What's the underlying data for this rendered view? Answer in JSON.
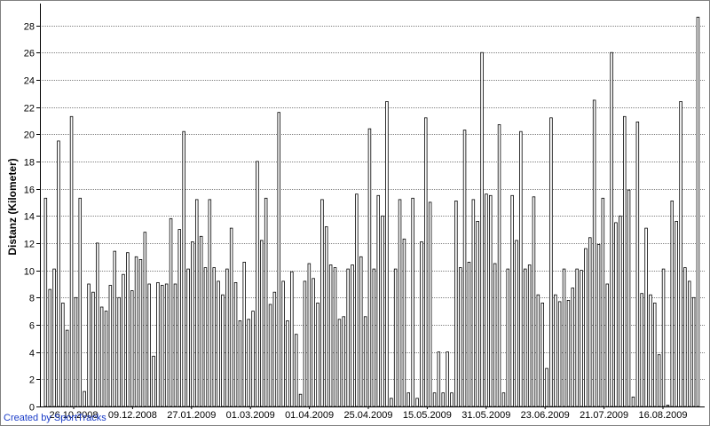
{
  "chart_data": {
    "type": "bar",
    "ylabel": "Distanz (Kilometer)",
    "ylim": [
      0,
      29.6
    ],
    "yticks": [
      0,
      2,
      4,
      6,
      8,
      10,
      12,
      14,
      16,
      18,
      20,
      22,
      24,
      26,
      28
    ],
    "grid": true,
    "x_tick_labels": [
      "26.10.2008",
      "09.12.2008",
      "27.01.2009",
      "01.03.2009",
      "01.04.2009",
      "25.04.2009",
      "15.05.2009",
      "31.05.2009",
      "23.06.2009",
      "21.07.2009",
      "16.08.2009"
    ],
    "bar_color": "#ffffff",
    "bar_edge_color": "#000000",
    "values": [
      15.3,
      8.6,
      10.1,
      19.5,
      7.6,
      5.6,
      21.3,
      8.0,
      15.3,
      1.1,
      9.0,
      8.4,
      12.0,
      7.3,
      7.0,
      8.9,
      11.4,
      8.0,
      9.7,
      11.3,
      8.5,
      11.0,
      10.8,
      12.8,
      9.0,
      3.7,
      9.1,
      8.9,
      9.0,
      13.8,
      9.0,
      13.0,
      20.2,
      10.1,
      12.1,
      15.2,
      12.5,
      10.2,
      15.2,
      10.2,
      9.2,
      8.2,
      10.1,
      13.1,
      9.1,
      6.3,
      10.6,
      6.4,
      7.0,
      18.0,
      12.2,
      15.3,
      7.5,
      8.4,
      21.6,
      9.2,
      6.3,
      9.9,
      5.3,
      0.9,
      9.2,
      10.5,
      9.4,
      7.6,
      15.2,
      13.2,
      10.4,
      10.2,
      6.4,
      6.6,
      10.1,
      10.4,
      15.6,
      11.0,
      6.6,
      20.4,
      10.1,
      15.5,
      14.0,
      22.4,
      0.6,
      10.1,
      15.2,
      12.3,
      1.0,
      15.3,
      0.6,
      12.1,
      21.2,
      15.0,
      1.0,
      4.0,
      1.0,
      4.0,
      1.0,
      15.1,
      10.2,
      20.3,
      10.6,
      15.2,
      13.6,
      26.0,
      15.6,
      15.5,
      10.5,
      20.7,
      1.0,
      10.1,
      15.5,
      12.2,
      20.2,
      10.1,
      10.4,
      15.4,
      8.2,
      7.6,
      2.8,
      21.2,
      8.2,
      7.7,
      10.1,
      7.8,
      8.7,
      10.1,
      10.0,
      11.6,
      12.4,
      22.5,
      11.9,
      15.3,
      9.0,
      26.0,
      13.5,
      14.0,
      21.3,
      15.9,
      0.7,
      20.9,
      8.3,
      13.1,
      8.2,
      7.6,
      3.8,
      10.1,
      0.1,
      15.1,
      13.6,
      22.4,
      10.2,
      9.2,
      8.0,
      28.6
    ]
  },
  "footer": {
    "credit": "Created by SportTracks"
  }
}
